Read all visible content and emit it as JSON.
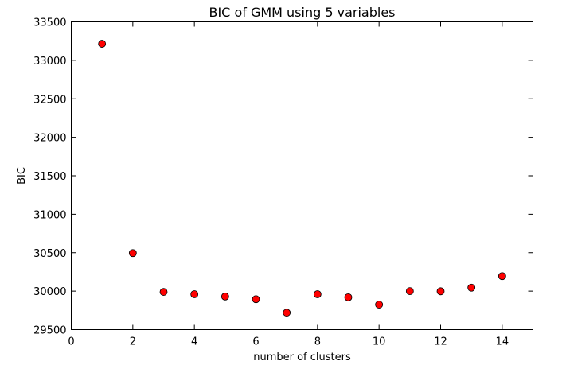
{
  "chart_data": {
    "type": "scatter",
    "title": "BIC of GMM using 5 variables",
    "xlabel": "number of clusters",
    "ylabel": "BIC",
    "xlim": [
      0,
      15
    ],
    "ylim": [
      29500,
      33500
    ],
    "xticks": [
      0,
      2,
      4,
      6,
      8,
      10,
      12,
      14
    ],
    "yticks": [
      29500,
      30000,
      30500,
      31000,
      31500,
      32000,
      32500,
      33000,
      33500
    ],
    "grid": false,
    "marker_color": "#ff0000",
    "marker_edge_color": "#000000",
    "series": [
      {
        "x": [
          1,
          2,
          3,
          4,
          5,
          6,
          7,
          8,
          9,
          10,
          11,
          12,
          13,
          14
        ],
        "y": [
          33215,
          30495,
          29990,
          29960,
          29930,
          29895,
          29720,
          29960,
          29920,
          29825,
          30000,
          29998,
          30045,
          30195
        ]
      }
    ]
  }
}
